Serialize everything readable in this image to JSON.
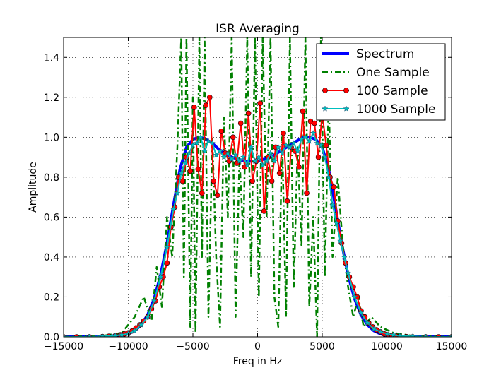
{
  "chart_data": {
    "type": "line",
    "title": "ISR Averaging",
    "xlabel": "Freq in Hz",
    "ylabel": "Amplitude",
    "xlim": [
      -15000,
      15000
    ],
    "ylim": [
      0,
      1.5
    ],
    "xticks": [
      -15000,
      -10000,
      -5000,
      0,
      5000,
      10000,
      15000
    ],
    "xtick_labels": [
      "−15000",
      "−10000",
      "−5000",
      "0",
      "5000",
      "10000",
      "15000"
    ],
    "yticks": [
      0.0,
      0.2,
      0.4,
      0.6,
      0.8,
      1.0,
      1.2,
      1.4
    ],
    "ytick_labels": [
      "0.0",
      "0.2",
      "0.4",
      "0.6",
      "0.8",
      "1.0",
      "1.2",
      "1.4"
    ],
    "grid": true,
    "legend_position": "top-right",
    "series": [
      {
        "name": "Spectrum",
        "color": "#0000ff",
        "style": "solid-thick",
        "marker": "none",
        "x": [
          -15000,
          -12000,
          -11000,
          -10000,
          -9500,
          -9000,
          -8500,
          -8000,
          -7500,
          -7000,
          -6500,
          -6000,
          -5500,
          -5000,
          -4500,
          -4000,
          -3500,
          -3000,
          -2500,
          -2000,
          -1500,
          -1000,
          -500,
          0,
          500,
          1000,
          1500,
          2000,
          2500,
          3000,
          3500,
          4000,
          4500,
          5000,
          5500,
          6000,
          6500,
          7000,
          7500,
          8000,
          8500,
          9000,
          9500,
          10000,
          11000,
          12000,
          15000
        ],
        "y": [
          0.0,
          0.002,
          0.006,
          0.015,
          0.03,
          0.06,
          0.11,
          0.19,
          0.31,
          0.47,
          0.66,
          0.84,
          0.95,
          0.99,
          1.0,
          0.99,
          0.97,
          0.94,
          0.92,
          0.9,
          0.89,
          0.88,
          0.88,
          0.88,
          0.89,
          0.9,
          0.92,
          0.94,
          0.96,
          0.98,
          1.0,
          1.0,
          0.99,
          0.95,
          0.84,
          0.66,
          0.47,
          0.31,
          0.19,
          0.11,
          0.06,
          0.03,
          0.015,
          0.006,
          0.002,
          0.0,
          0.0
        ]
      },
      {
        "name": "One Sample",
        "color": "#008000",
        "style": "dashdot",
        "marker": "none",
        "x": [
          -15000,
          -12000,
          -10500,
          -9500,
          -8800,
          -8200,
          -7800,
          -7400,
          -7000,
          -6600,
          -6200,
          -5900,
          -5700,
          -5500,
          -5200,
          -5000,
          -4800,
          -4500,
          -4300,
          -4100,
          -3800,
          -3500,
          -3200,
          -2900,
          -2600,
          -2300,
          -2000,
          -1700,
          -1400,
          -1100,
          -800,
          -500,
          -200,
          100,
          400,
          700,
          1000,
          1300,
          1600,
          1900,
          2200,
          2500,
          2800,
          3100,
          3400,
          3700,
          4000,
          4300,
          4600,
          4900,
          5200,
          5500,
          5800,
          6200,
          6600,
          7000,
          7400,
          7800,
          8200,
          8800,
          9500,
          10500,
          12000,
          15000
        ],
        "y": [
          0.0,
          0.005,
          0.02,
          0.1,
          0.2,
          0.08,
          0.35,
          0.15,
          0.6,
          0.4,
          0.95,
          1.5,
          0.3,
          1.5,
          0.05,
          1.2,
          0.02,
          1.5,
          0.4,
          1.5,
          0.1,
          1.0,
          0.4,
          0.05,
          1.1,
          0.6,
          1.5,
          0.1,
          0.9,
          0.5,
          1.5,
          0.3,
          1.5,
          0.2,
          1.5,
          0.6,
          1.5,
          0.2,
          0.05,
          1.0,
          0.1,
          1.5,
          0.25,
          0.95,
          0.45,
          1.5,
          0.15,
          0.6,
          0.0,
          1.5,
          0.3,
          1.2,
          0.4,
          0.8,
          0.45,
          0.25,
          0.1,
          0.2,
          0.05,
          0.1,
          0.05,
          0.02,
          0.005,
          0.0
        ]
      },
      {
        "name": "100 Sample",
        "color": "#ff0000",
        "style": "solid",
        "marker": "circle",
        "x": [
          -15000,
          -14000,
          -13000,
          -12000,
          -11500,
          -11000,
          -10600,
          -10300,
          -10000,
          -9700,
          -9400,
          -9100,
          -8800,
          -8500,
          -8200,
          -7900,
          -7600,
          -7300,
          -7000,
          -6700,
          -6400,
          -6100,
          -5800,
          -5500,
          -5200,
          -4900,
          -4600,
          -4300,
          -4000,
          -3700,
          -3400,
          -3100,
          -2800,
          -2500,
          -2200,
          -1900,
          -1600,
          -1300,
          -1000,
          -700,
          -400,
          -100,
          200,
          500,
          800,
          1100,
          1400,
          1700,
          2000,
          2300,
          2600,
          2900,
          3200,
          3500,
          3800,
          4100,
          4400,
          4700,
          5000,
          5300,
          5600,
          5900,
          6200,
          6500,
          6800,
          7100,
          7400,
          7700,
          8000,
          8300,
          8600,
          8900,
          9200,
          9500,
          9800,
          10100,
          10400,
          10700,
          11000,
          11500,
          12000,
          13000,
          14000,
          15000
        ],
        "y": [
          0.0,
          0.0,
          0.0,
          0.001,
          0.003,
          0.006,
          0.01,
          0.015,
          0.02,
          0.03,
          0.045,
          0.06,
          0.08,
          0.1,
          0.14,
          0.18,
          0.25,
          0.3,
          0.37,
          0.55,
          0.65,
          0.8,
          0.78,
          0.9,
          0.83,
          1.15,
          0.84,
          0.72,
          1.16,
          1.2,
          0.78,
          0.71,
          1.03,
          0.92,
          0.88,
          1.0,
          0.87,
          1.07,
          0.85,
          1.12,
          0.78,
          0.88,
          1.17,
          0.63,
          0.9,
          0.78,
          0.95,
          0.82,
          1.02,
          0.68,
          0.95,
          0.93,
          0.85,
          1.13,
          0.72,
          1.08,
          1.07,
          0.9,
          1.12,
          0.96,
          0.8,
          0.75,
          0.58,
          0.47,
          0.37,
          0.3,
          0.25,
          0.2,
          0.13,
          0.1,
          0.07,
          0.05,
          0.035,
          0.025,
          0.015,
          0.01,
          0.007,
          0.004,
          0.003,
          0.001,
          0.0,
          0.0,
          0.0,
          0.0
        ]
      },
      {
        "name": "1000 Sample",
        "color": "#00bfbf",
        "style": "solid",
        "marker": "star",
        "x": [
          -15000,
          -13000,
          -12000,
          -11000,
          -10500,
          -10000,
          -9500,
          -9000,
          -8500,
          -8000,
          -7500,
          -7000,
          -6500,
          -6200,
          -5900,
          -5600,
          -5300,
          -5000,
          -4700,
          -4400,
          -4100,
          -3800,
          -3500,
          -3200,
          -2900,
          -2600,
          -2300,
          -2000,
          -1700,
          -1400,
          -1100,
          -800,
          -500,
          -200,
          100,
          400,
          700,
          1000,
          1300,
          1600,
          1900,
          2200,
          2500,
          2800,
          3100,
          3400,
          3700,
          4000,
          4300,
          4600,
          4900,
          5200,
          5500,
          5800,
          6100,
          6400,
          6700,
          7000,
          7500,
          8000,
          8500,
          9000,
          9500,
          10000,
          10500,
          11000,
          12000,
          13000,
          15000
        ],
        "y": [
          0.0,
          0.0,
          0.002,
          0.006,
          0.01,
          0.016,
          0.03,
          0.06,
          0.1,
          0.18,
          0.3,
          0.45,
          0.64,
          0.72,
          0.82,
          0.87,
          0.92,
          0.96,
          0.97,
          1.0,
          0.93,
          0.98,
          0.97,
          0.91,
          0.93,
          0.9,
          0.92,
          0.89,
          0.91,
          0.88,
          0.9,
          0.86,
          0.95,
          0.88,
          0.9,
          0.86,
          0.88,
          0.92,
          0.88,
          0.95,
          0.92,
          0.96,
          0.95,
          0.97,
          0.93,
          0.99,
          1.0,
          0.98,
          1.02,
          0.97,
          0.96,
          0.9,
          0.8,
          0.66,
          0.57,
          0.48,
          0.4,
          0.32,
          0.2,
          0.12,
          0.07,
          0.04,
          0.025,
          0.015,
          0.01,
          0.005,
          0.002,
          0.0,
          0.0
        ]
      }
    ]
  }
}
